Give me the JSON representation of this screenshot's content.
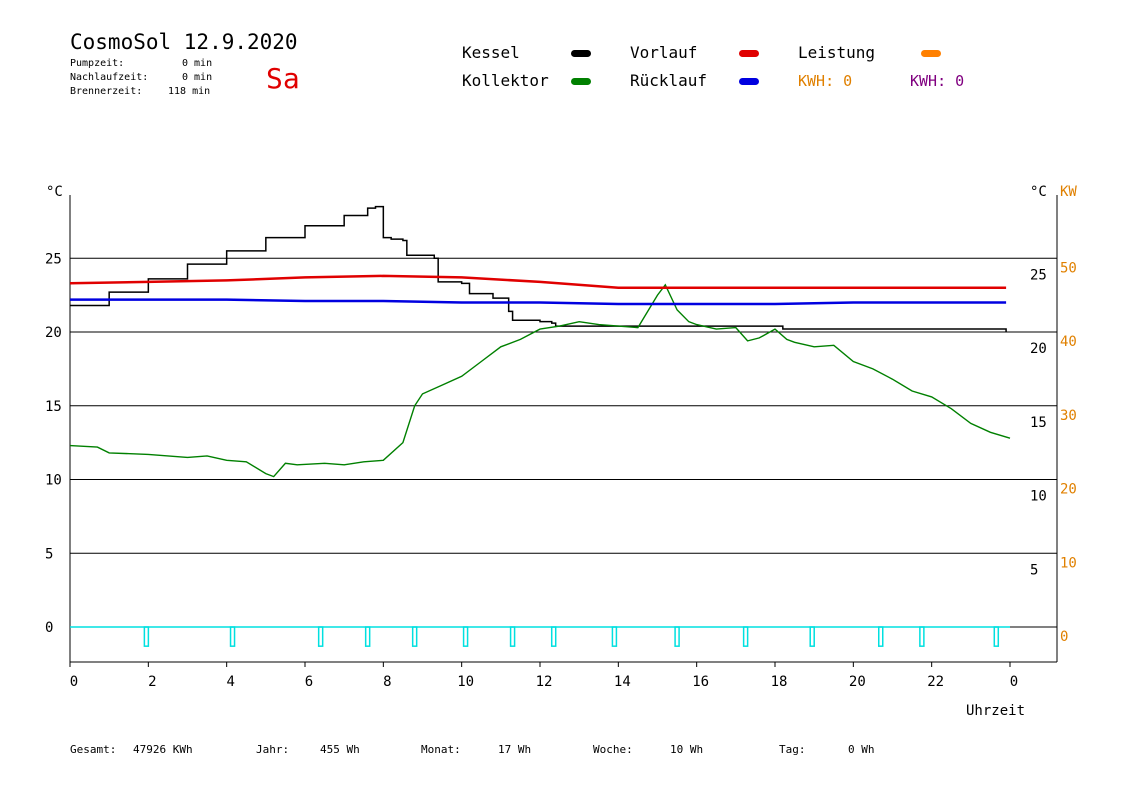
{
  "header": {
    "title": "CosmoSol 12.9.2020",
    "day": "Sa",
    "stats": [
      {
        "label": "Pumpzeit:",
        "value": "0 min"
      },
      {
        "label": "Nachlaufzeit:",
        "value": "0 min"
      },
      {
        "label": "Brennerzeit:",
        "value": "118 min"
      }
    ]
  },
  "legend": {
    "kessel": "Kessel",
    "kollektor": "Kollektor",
    "vorlauf": "Vorlauf",
    "ruecklauf": "Rücklauf",
    "leistung": "Leistung",
    "kwh1": "KWH: 0",
    "kwh2": "KWH: 0"
  },
  "colors": {
    "kessel": "#000000",
    "kollektor": "#008000",
    "vorlauf": "#e00000",
    "ruecklauf": "#0000e0",
    "leistung": "#ff8000",
    "kwh2": "#800080",
    "pump": "#00e0e0"
  },
  "axes": {
    "left_unit": "°C",
    "right_unit": "°C",
    "right_unit2": "KW",
    "xlabel": "Uhrzeit",
    "left_ticks": [
      "25",
      "20",
      "15",
      "10",
      "5",
      "0"
    ],
    "right_ticks": [
      "25",
      "20",
      "15",
      "10",
      "5"
    ],
    "right_ticks2": [
      "50",
      "40",
      "30",
      "20",
      "10",
      "0"
    ],
    "x_ticks": [
      "0",
      "2",
      "4",
      "6",
      "8",
      "10",
      "12",
      "14",
      "16",
      "18",
      "20",
      "22",
      "0"
    ]
  },
  "footer": {
    "gesamt_label": "Gesamt:",
    "gesamt_value": "47926 KWh",
    "jahr_label": "Jahr:",
    "jahr_value": "455 Wh",
    "monat_label": "Monat:",
    "monat_value": "17 Wh",
    "woche_label": "Woche:",
    "woche_value": "10 Wh",
    "tag_label": "Tag:",
    "tag_value": "0 Wh"
  },
  "chart_data": {
    "type": "line",
    "xlabel": "Uhrzeit",
    "ylabel": "°C",
    "xlim": [
      0,
      24
    ],
    "ylim": [
      -2.3,
      29.5
    ],
    "grid": "horizontal",
    "series": [
      {
        "name": "Kessel",
        "color": "#000000",
        "x": [
          0,
          1,
          2,
          3,
          4,
          5,
          6,
          7,
          7.6,
          7.8,
          8.0,
          8.2,
          8.5,
          8.6,
          9.3,
          9.4,
          10.0,
          10.2,
          10.8,
          11.2,
          11.3,
          12.0,
          12.3,
          12.4,
          15,
          17,
          18,
          18.2,
          20,
          22,
          23.9
        ],
        "y": [
          21.8,
          22.7,
          23.6,
          24.6,
          25.5,
          26.4,
          27.2,
          27.9,
          28.4,
          28.5,
          26.4,
          26.3,
          26.2,
          25.2,
          25.0,
          23.4,
          23.3,
          22.6,
          22.3,
          21.4,
          20.8,
          20.7,
          20.6,
          20.4,
          20.4,
          20.4,
          20.4,
          20.2,
          20.2,
          20.2,
          20.0
        ]
      },
      {
        "name": "Kollektor",
        "color": "#008000",
        "x": [
          0,
          0.7,
          1,
          2,
          3,
          3.5,
          4,
          4.5,
          5,
          5.2,
          5.5,
          5.8,
          6.5,
          7,
          7.5,
          8,
          8.5,
          8.8,
          9,
          9.5,
          10,
          10.5,
          11,
          11.5,
          12,
          12.5,
          13,
          13.5,
          14,
          14.5,
          15,
          15.2,
          15.5,
          15.8,
          16,
          16.5,
          17,
          17.3,
          17.6,
          18,
          18.3,
          18.5,
          19,
          19.5,
          20,
          20.5,
          21,
          21.5,
          22,
          22.5,
          23,
          23.5,
          24
        ],
        "y": [
          12.3,
          12.2,
          11.8,
          11.7,
          11.5,
          11.6,
          11.3,
          11.2,
          10.4,
          10.2,
          11.1,
          11.0,
          11.1,
          11.0,
          11.2,
          11.3,
          12.5,
          15.0,
          15.8,
          16.4,
          17.0,
          18.0,
          19.0,
          19.5,
          20.2,
          20.4,
          20.7,
          20.5,
          20.4,
          20.3,
          22.5,
          23.2,
          21.5,
          20.7,
          20.5,
          20.2,
          20.3,
          19.4,
          19.6,
          20.2,
          19.5,
          19.3,
          19.0,
          19.1,
          18.0,
          17.5,
          16.8,
          16.0,
          15.6,
          14.8,
          13.8,
          13.2,
          12.8
        ]
      },
      {
        "name": "Vorlauf",
        "color": "#e00000",
        "x": [
          0,
          2,
          4,
          6,
          8,
          10,
          12,
          14,
          15,
          16,
          18,
          20,
          22,
          23.9
        ],
        "y": [
          23.3,
          23.4,
          23.5,
          23.7,
          23.8,
          23.7,
          23.4,
          23.0,
          23.0,
          23.0,
          23.0,
          23.0,
          23.0,
          23.0
        ]
      },
      {
        "name": "Rücklauf",
        "color": "#0000e0",
        "x": [
          0,
          2,
          4,
          6,
          8,
          10,
          12,
          14,
          16,
          18,
          20,
          22,
          23.9
        ],
        "y": [
          22.2,
          22.2,
          22.2,
          22.1,
          22.1,
          22.0,
          22.0,
          21.9,
          21.9,
          21.9,
          22.0,
          22.0,
          22.0
        ]
      },
      {
        "name": "Pumpe",
        "color": "#00e0e0",
        "x": [
          1.95,
          4.15,
          6.4,
          7.6,
          8.8,
          10.1,
          11.3,
          12.35,
          13.9,
          15.5,
          17.25,
          18.95,
          20.7,
          21.75,
          23.65
        ],
        "y": [
          -1.3,
          -1.3,
          -1.3,
          -1.3,
          -1.3,
          -1.3,
          -1.3,
          -1.3,
          -1.3,
          -1.3,
          -1.3,
          -1.3,
          -1.3,
          -1.3,
          -1.3
        ]
      }
    ]
  }
}
